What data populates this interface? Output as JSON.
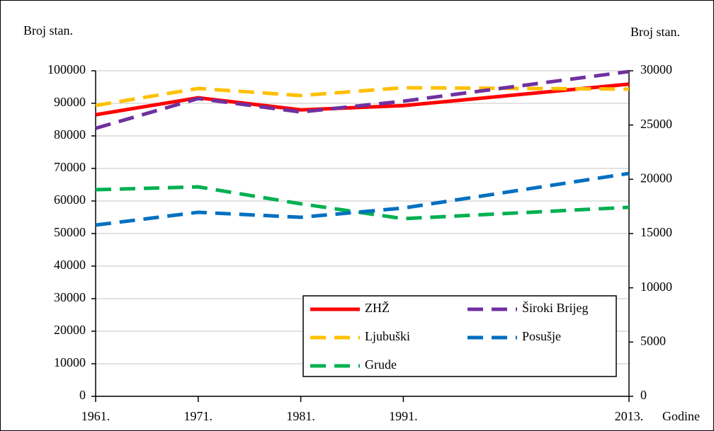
{
  "chart_data": {
    "type": "line",
    "ylabel": "Broj stan.",
    "y2label": "Broj stan.",
    "xlabel": "Godine",
    "x": [
      1961,
      1971,
      1981,
      1991,
      2013
    ],
    "xlim": [
      1961,
      2013
    ],
    "xticks": [
      {
        "value": 1961,
        "label": "1961."
      },
      {
        "value": 1971,
        "label": "1971."
      },
      {
        "value": 1981,
        "label": "1981."
      },
      {
        "value": 1991,
        "label": "1991."
      },
      {
        "value": 2013,
        "label": "2013."
      }
    ],
    "ylim": [
      0,
      100000
    ],
    "yticks": [
      0,
      10000,
      20000,
      30000,
      40000,
      50000,
      60000,
      70000,
      80000,
      90000,
      100000
    ],
    "y2lim": [
      0,
      30000
    ],
    "y2ticks": [
      0,
      5000,
      10000,
      15000,
      20000,
      25000,
      30000
    ],
    "grid": true,
    "legend": "lower right",
    "series": [
      {
        "name": "ZHŽ",
        "color": "#ff0000",
        "line_style": "solid",
        "axis": "y",
        "values": [
          86500,
          91700,
          88000,
          89300,
          95900
        ]
      },
      {
        "name": "Ljubuški",
        "color": "#ffc000",
        "line_style": "dashed",
        "axis": "y2",
        "values": [
          26800,
          28370,
          27720,
          28440,
          28310
        ]
      },
      {
        "name": "Grude",
        "color": "#00b050",
        "line_style": "dashed",
        "axis": "y2",
        "values": [
          19040,
          19300,
          17740,
          16370,
          17420
        ]
      },
      {
        "name": "Široki Brijeg",
        "color": "#7030a0",
        "line_style": "dashed",
        "axis": "y2",
        "values": [
          24700,
          27440,
          26200,
          27200,
          29930
        ]
      },
      {
        "name": "Posušje",
        "color": "#0070c0",
        "line_style": "dashed",
        "axis": "y2",
        "values": [
          15780,
          16960,
          16500,
          17350,
          20540
        ]
      }
    ]
  }
}
